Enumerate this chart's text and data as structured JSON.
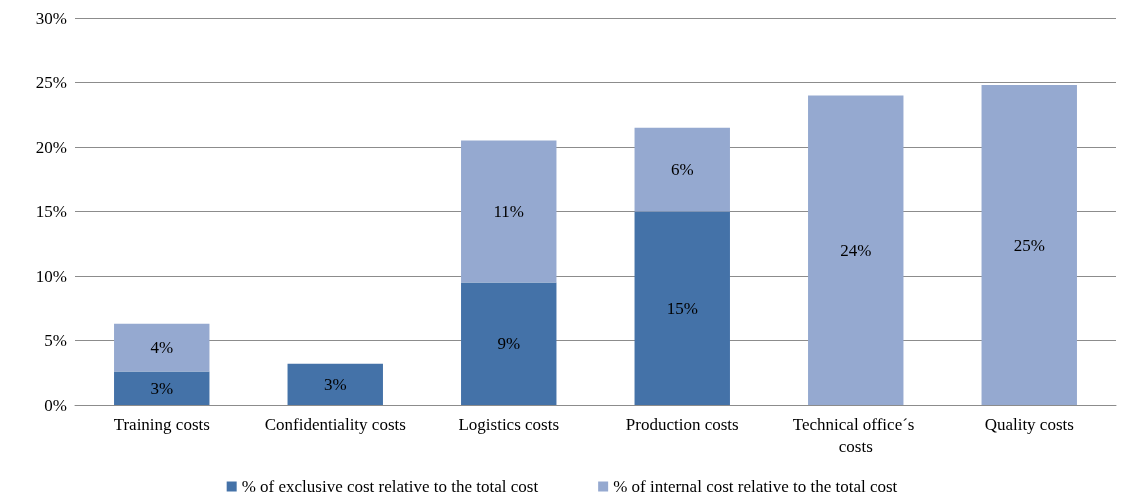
{
  "chart_data": {
    "type": "bar",
    "stacked": true,
    "categories": [
      "Training costs",
      "Confidentiality costs",
      "Logistics costs",
      "Production costs",
      "Technical office´s costs",
      "Quality costs"
    ],
    "series": [
      {
        "name": "% of exclusive cost relative to the total cost",
        "color": "#4472a8",
        "values": [
          2.6,
          3.2,
          9.5,
          15,
          null,
          null
        ],
        "value_labels": [
          "3%",
          "3%",
          "9%",
          "15%",
          null,
          null
        ]
      },
      {
        "name": "% of internal cost relative to the total cost",
        "color": "#95a9d0",
        "values": [
          3.7,
          null,
          11,
          6.5,
          24,
          24.8
        ],
        "value_labels": [
          "4%",
          null,
          "11%",
          "6%",
          "24%",
          "25%"
        ]
      }
    ],
    "ylim": [
      0,
      30
    ],
    "yticks": [
      {
        "value": 0,
        "label": "0%"
      },
      {
        "value": 5,
        "label": "5%"
      },
      {
        "value": 10,
        "label": "10%"
      },
      {
        "value": 15,
        "label": "15%"
      },
      {
        "value": 20,
        "label": "20%"
      },
      {
        "value": 25,
        "label": "25%"
      },
      {
        "value": 30,
        "label": "30%"
      }
    ],
    "grid": "y",
    "legend": "bottom"
  }
}
